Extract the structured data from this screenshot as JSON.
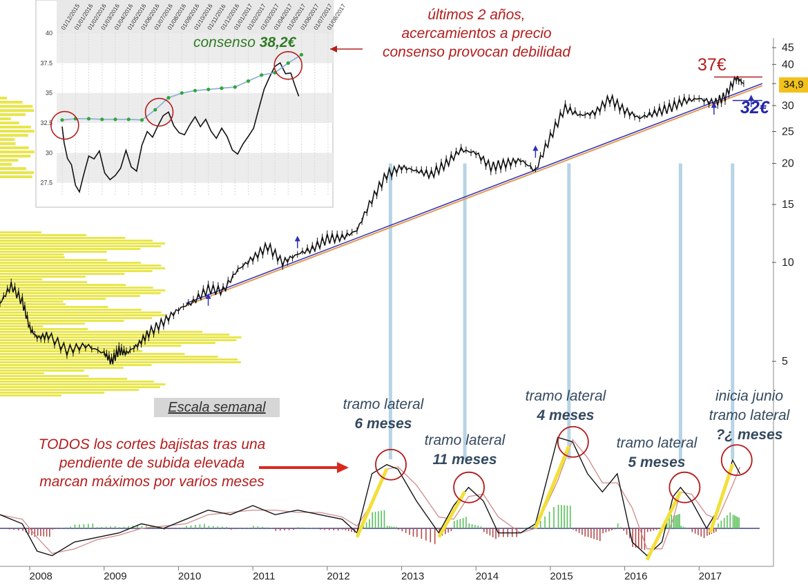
{
  "chart_data": [
    {
      "type": "line",
      "name": "weekly-price-log",
      "scale": "weekly",
      "y_scale": "log",
      "ylim": [
        4.5,
        47
      ],
      "yticks": [
        5,
        10,
        15,
        20,
        25,
        30,
        35,
        40,
        45
      ],
      "xlim": [
        2007.6,
        2018.0
      ],
      "xticks": [
        "2008",
        "2009",
        "2010",
        "2011",
        "2012",
        "2013",
        "2014",
        "2015",
        "2016",
        "2017"
      ],
      "x": [
        2007.6,
        2007.75,
        2007.9,
        2008.0,
        2008.1,
        2008.25,
        2008.5,
        2008.75,
        2009.0,
        2009.1,
        2009.2,
        2009.3,
        2009.45,
        2009.6,
        2009.8,
        2010.0,
        2010.2,
        2010.4,
        2010.6,
        2010.8,
        2011.0,
        2011.2,
        2011.4,
        2011.6,
        2011.8,
        2012.0,
        2012.2,
        2012.4,
        2012.6,
        2012.8,
        2013.0,
        2013.2,
        2013.4,
        2013.6,
        2013.8,
        2014.0,
        2014.2,
        2014.4,
        2014.6,
        2014.8,
        2015.0,
        2015.2,
        2015.4,
        2015.6,
        2015.8,
        2016.0,
        2016.2,
        2016.4,
        2016.6,
        2016.8,
        2017.0,
        2017.2,
        2017.35,
        2017.5,
        2017.6
      ],
      "y": [
        7.5,
        8.5,
        7.6,
        6.3,
        5.9,
        6.0,
        5.4,
        5.6,
        5.3,
        5.0,
        5.4,
        5.3,
        5.6,
        6.1,
        6.6,
        7.2,
        7.6,
        8.3,
        8.2,
        9.5,
        10.3,
        11.2,
        10.0,
        10.6,
        11.0,
        11.8,
        11.9,
        12.5,
        15.5,
        18.5,
        19.5,
        19.0,
        18.5,
        20.0,
        22.0,
        21.5,
        19.5,
        20.0,
        20.5,
        19.0,
        24.0,
        29.5,
        28.0,
        28.5,
        31.5,
        29.0,
        27.5,
        28.5,
        29.5,
        31.0,
        31.5,
        30.5,
        32.0,
        36.5,
        35.0
      ],
      "trendline": {
        "x": [
          2010.1,
          2017.85
        ],
        "y": [
          7.4,
          34.5
        ]
      },
      "trend_touch_arrows": [
        2010.4,
        2011.6,
        2014.8,
        2017.2,
        2017.7
      ],
      "resistance_37": 37,
      "support_32": 32,
      "last_price_label": "34,9"
    },
    {
      "type": "line",
      "name": "inset-daily-price-consensus",
      "ylim": [
        26.5,
        40
      ],
      "yticks": [
        "27.5",
        "30",
        "32.5",
        "35",
        "37.5",
        "40"
      ],
      "date_labels": [
        "01/12/2015",
        "01/01/2016",
        "01/02/2016",
        "01/03/2016",
        "01/04/2016",
        "01/05/2016",
        "01/06/2016",
        "01/07/2016",
        "01/08/2016",
        "01/09/2016",
        "01/10/2016",
        "01/11/2016",
        "01/12/2016",
        "01/01/2017",
        "01/02/2017",
        "01/03/2017",
        "01/04/2017",
        "01/05/2017",
        "01/06/2017",
        "01/07/2017",
        "01/08/2017"
      ],
      "price": {
        "x": [
          0,
          0.15,
          0.4,
          0.7,
          1.0,
          1.3,
          1.6,
          2.0,
          2.4,
          2.8,
          3.2,
          3.6,
          4.0,
          4.4,
          4.8,
          5.2,
          5.6,
          6.0,
          6.4,
          6.8,
          7.2,
          7.6,
          8.0,
          8.4,
          8.8,
          9.2,
          9.6,
          10.0,
          10.4,
          10.8,
          11.2,
          11.6,
          12.0,
          12.4,
          12.8,
          13.2,
          13.6,
          14.0,
          14.4,
          14.8,
          15.2,
          15.6,
          16.0,
          16.4,
          16.8,
          17.2,
          17.5,
          17.8
        ],
        "y": [
          32.2,
          31.0,
          29.8,
          29.3,
          27.5,
          26.8,
          28.0,
          29.5,
          29.2,
          29.9,
          28.2,
          27.8,
          28.3,
          29.0,
          30.5,
          29.0,
          28.5,
          30.5,
          31.5,
          31.0,
          32.0,
          33.0,
          33.5,
          32.5,
          32.0,
          31.8,
          32.5,
          33.0,
          32.0,
          32.5,
          31.5,
          31.0,
          32.0,
          31.5,
          30.5,
          30.2,
          31.0,
          31.5,
          32.0,
          33.5,
          35.0,
          36.0,
          37.0,
          37.5,
          36.8,
          37.0,
          36.0,
          35.0
        ]
      },
      "consensus": {
        "x": [
          0,
          1,
          2,
          3,
          4,
          5,
          6,
          7,
          8,
          9,
          10,
          11,
          12,
          13,
          14,
          15,
          16,
          17,
          18
        ],
        "y": [
          32.75,
          32.85,
          32.85,
          32.8,
          32.8,
          32.8,
          32.75,
          33.6,
          34.6,
          35.0,
          35.2,
          35.3,
          35.4,
          35.5,
          36.0,
          36.5,
          36.7,
          37.5,
          38.2
        ]
      }
    },
    {
      "type": "line",
      "name": "momentum-oscillator",
      "zero_line": true,
      "x": [
        2007.6,
        2007.9,
        2008.1,
        2008.3,
        2008.6,
        2008.9,
        2009.2,
        2009.5,
        2009.8,
        2010.1,
        2010.4,
        2010.7,
        2011.0,
        2011.3,
        2011.6,
        2011.9,
        2012.2,
        2012.4,
        2012.6,
        2012.8,
        2012.95,
        2013.2,
        2013.5,
        2013.7,
        2013.9,
        2014.1,
        2014.3,
        2014.6,
        2014.8,
        2015.1,
        2015.3,
        2015.5,
        2015.7,
        2015.9,
        2016.1,
        2016.3,
        2016.5,
        2016.65,
        2016.75,
        2016.9,
        2017.1,
        2017.25,
        2017.45,
        2017.55
      ],
      "y": [
        0.3,
        0.1,
        -0.5,
        -0.6,
        -0.3,
        -0.2,
        -0.1,
        0.1,
        0.0,
        0.2,
        0.4,
        0.3,
        0.5,
        0.3,
        0.4,
        0.3,
        0.2,
        -0.1,
        1.2,
        1.4,
        1.3,
        0.6,
        -0.1,
        0.5,
        0.9,
        0.6,
        -0.1,
        -0.1,
        0.1,
        2.0,
        1.9,
        1.2,
        0.8,
        1.2,
        -0.3,
        -0.6,
        -0.3,
        0.7,
        0.9,
        0.6,
        0.0,
        0.4,
        1.5,
        1.2
      ],
      "ylim": [
        -0.9,
        2.2
      ]
    }
  ],
  "annotations": {
    "top_right_line1": "últimos 2 años,",
    "top_right_line2": "acercamientos a precio",
    "top_right_line3": "consenso provocan debilidad",
    "consensus_prefix": "consenso ",
    "consensus_value": "38,2€",
    "price_37": "37€",
    "price_32": "32€",
    "scale_label": "Escala semanal",
    "bearish_line1": "TODOS los cortes bajistas tras una",
    "bearish_line2": "pendiente de subida elevada",
    "bearish_line3": "marcan máximos por varios meses",
    "t1_line1": "tramo lateral",
    "t1_line2": "6 meses",
    "t2_line1": "tramo lateral",
    "t2_line2": "11 meses",
    "t3_line1": "tramo lateral",
    "t3_line2": "4 meses",
    "t4_line1": "tramo lateral",
    "t4_line2": "5 meses",
    "t5_line1": "inicia junio",
    "t5_line2": "tramo lateral",
    "t5_line3": "?¿ meses"
  },
  "colors": {
    "price": "#111111",
    "trend_blue": "#2e2fb8",
    "trend_orange": "#e39a55",
    "volume_profile": "#e8e64a",
    "consensus_line": "#8fb3d6",
    "consensus_dot": "#2ea63a",
    "annotation_red": "#b31d1d",
    "annotation_slate": "#34495e",
    "vertical_marker": "#b7d4e6",
    "impulse_leg": "#f2e03a",
    "osc_positive": "#58c05a",
    "osc_negative": "#b34a4a",
    "osc_signal": "#d08a8a"
  }
}
